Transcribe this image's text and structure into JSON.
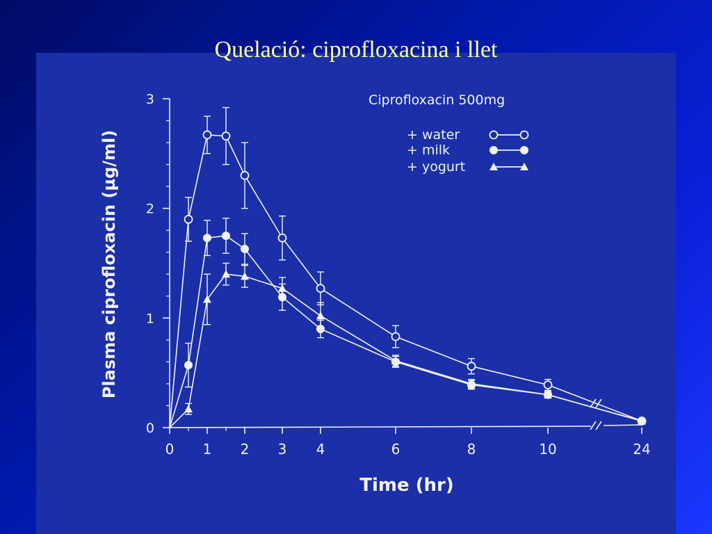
{
  "slide": {
    "title": "Quelació: ciprofloxacina i llet"
  },
  "chart_data": {
    "type": "line",
    "title": "Ciprofloxacin 500mg",
    "xlabel": "Time (hr)",
    "ylabel": "Plasma ciprofloxacin (µg/ml)",
    "x_ticks": [
      "0",
      "1",
      "2",
      "3",
      "4",
      "6",
      "8",
      "10",
      "24"
    ],
    "y_ticks": [
      "0",
      "1",
      "2",
      "3"
    ],
    "ylim": [
      0,
      3
    ],
    "grid": false,
    "legend_position": "top-right",
    "axis_break": "between 10 and 24",
    "colors": {
      "background": "#0018a8",
      "panel": "#1a2fa8",
      "lines": "#f2f2f2",
      "title": "#ffff99"
    },
    "series": [
      {
        "name": "water",
        "legend_label": "+ water",
        "marker": "open-circle",
        "x": [
          0,
          0.5,
          1,
          1.5,
          2,
          3,
          4,
          6,
          8,
          10,
          24
        ],
        "y": [
          0,
          1.9,
          2.67,
          2.66,
          2.3,
          1.73,
          1.27,
          0.83,
          0.56,
          0.39,
          0.06
        ],
        "err": [
          0,
          0.2,
          0.17,
          0.26,
          0.3,
          0.2,
          0.15,
          0.1,
          0.07,
          0.05,
          0
        ]
      },
      {
        "name": "milk",
        "legend_label": "+ milk",
        "marker": "filled-circle",
        "x": [
          0,
          0.5,
          1,
          1.5,
          2,
          3,
          4,
          6,
          8,
          10,
          24
        ],
        "y": [
          0,
          0.57,
          1.73,
          1.75,
          1.63,
          1.19,
          0.9,
          0.6,
          0.39,
          0.3,
          0.06
        ],
        "err": [
          0,
          0.2,
          0.16,
          0.16,
          0.14,
          0.12,
          0.08,
          0.05,
          0.04,
          0.03,
          0
        ]
      },
      {
        "name": "yogurt",
        "legend_label": "+ yogurt",
        "marker": "filled-triangle",
        "x": [
          0,
          0.5,
          1,
          1.5,
          2,
          3,
          4,
          6,
          8,
          10,
          24
        ],
        "y": [
          0,
          0.17,
          1.17,
          1.4,
          1.38,
          1.27,
          1.02,
          0.61,
          0.4,
          0.3,
          0.06
        ],
        "err": [
          0,
          0.05,
          0.23,
          0.1,
          0.1,
          0.1,
          0.12,
          0.05,
          0.04,
          0.03,
          0
        ]
      }
    ]
  }
}
